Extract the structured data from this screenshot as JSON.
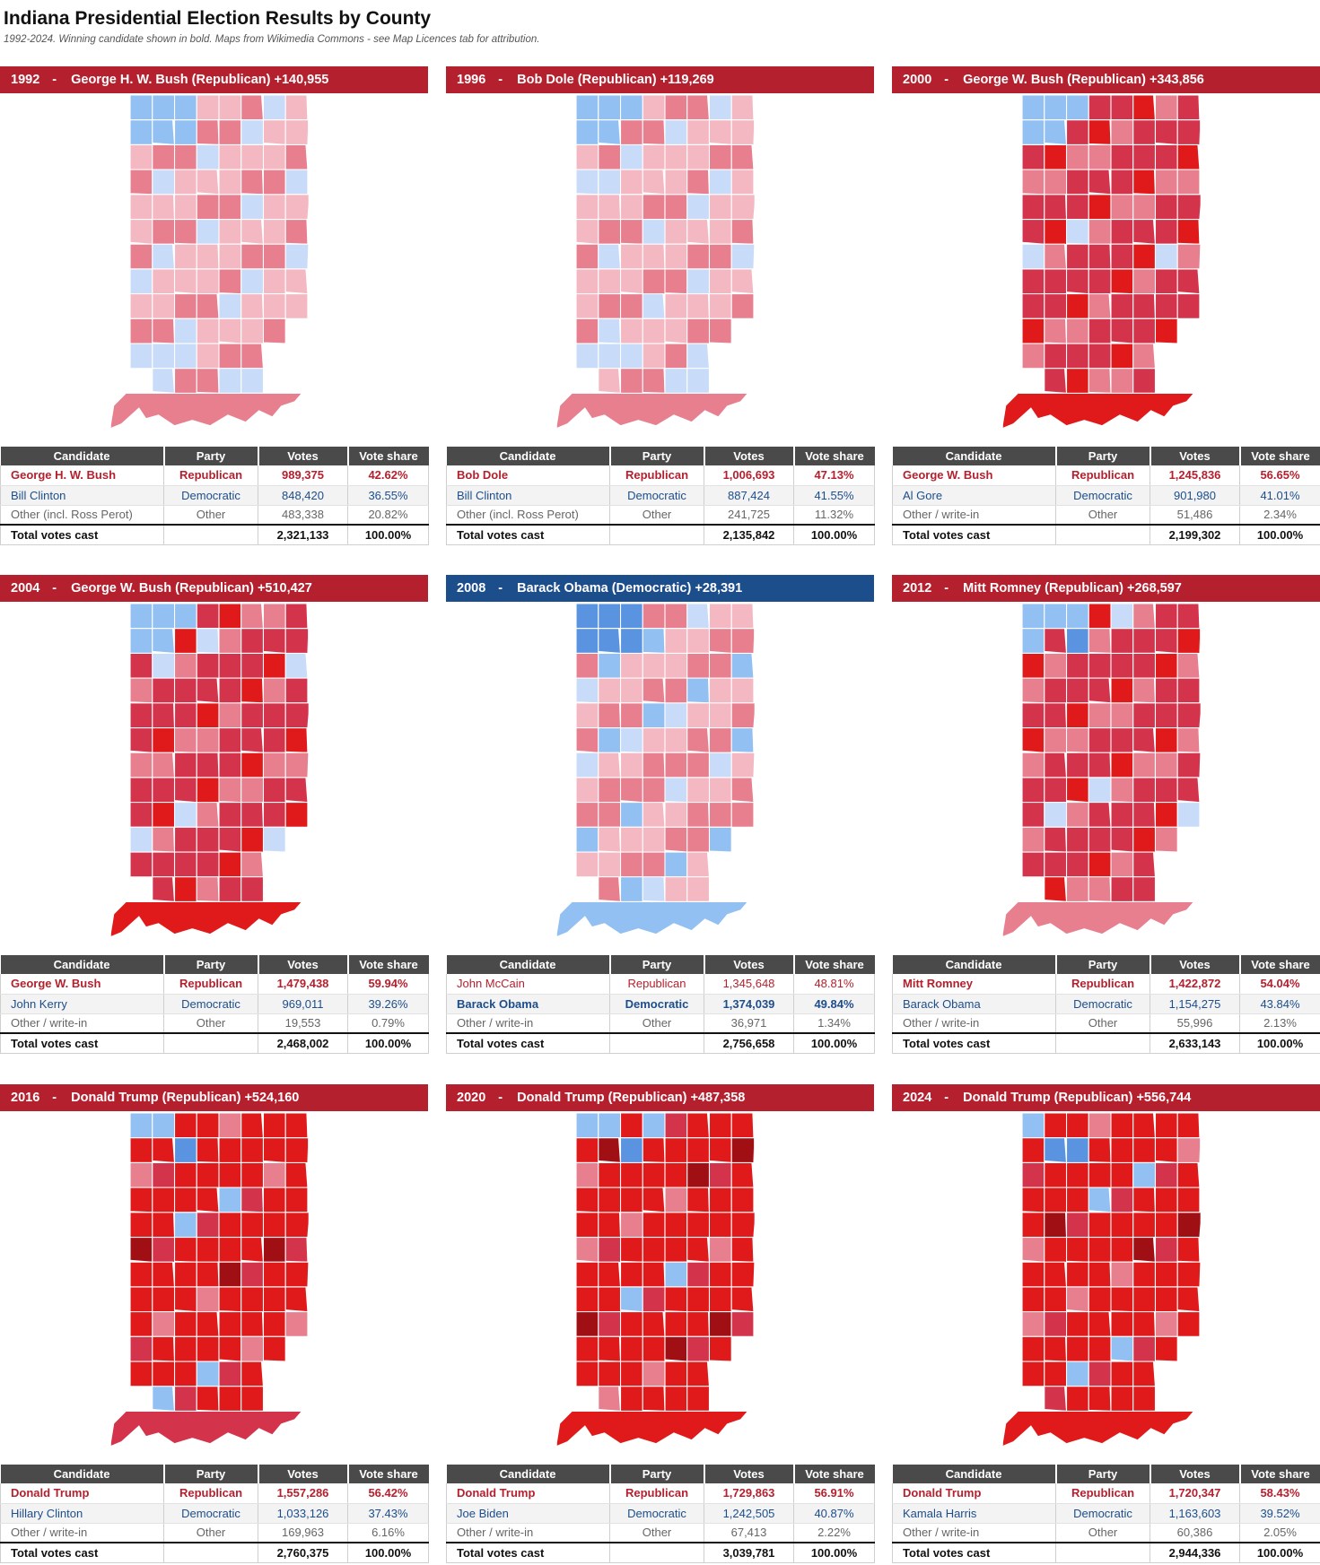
{
  "title": "Indiana Presidential Election Results by County",
  "subtitle": "1992-2024. Winning candidate shown in bold. Maps from Wikimedia Commons - see Map Licences tab for attribution.",
  "headers": {
    "candidate": "Candidate",
    "party": "Party",
    "votes": "Votes",
    "share": "Vote share"
  },
  "colors": {
    "rep_banner": "#b5202e",
    "dem_banner": "#1d4e8c",
    "header_bg": "#4a4a4a",
    "rep_text": "#b5202e",
    "dem_text": "#1d4e8c",
    "other_text": "#666666",
    "county_scale": [
      "#5a93e0",
      "#93c0f2",
      "#c8dcf9",
      "#f4b8c2",
      "#e77f8f",
      "#d3344c",
      "#e01a1a",
      "#a00f14"
    ]
  },
  "elections": [
    {
      "year": "1992",
      "winner_label": "George H. W. Bush (Republican) +140,955",
      "winner_party": "rep",
      "rows": [
        {
          "candidate": "George H. W. Bush",
          "party": "Republican",
          "votes": "989,375",
          "share": "42.62%",
          "kind": "rep",
          "win": true
        },
        {
          "candidate": "Bill Clinton",
          "party": "Democratic",
          "votes": "848,420",
          "share": "36.55%",
          "kind": "dem",
          "win": false
        },
        {
          "candidate": "Other (incl. Ross Perot)",
          "party": "Other",
          "votes": "483,338",
          "share": "20.82%",
          "kind": "oth",
          "win": false
        }
      ],
      "total": {
        "label": "Total votes cast",
        "votes": "2,321,133",
        "share": "100.00%"
      }
    },
    {
      "year": "1996",
      "winner_label": "Bob Dole (Republican) +119,269",
      "winner_party": "rep",
      "rows": [
        {
          "candidate": "Bob Dole",
          "party": "Republican",
          "votes": "1,006,693",
          "share": "47.13%",
          "kind": "rep",
          "win": true
        },
        {
          "candidate": "Bill Clinton",
          "party": "Democratic",
          "votes": "887,424",
          "share": "41.55%",
          "kind": "dem",
          "win": false
        },
        {
          "candidate": "Other (incl. Ross Perot)",
          "party": "Other",
          "votes": "241,725",
          "share": "11.32%",
          "kind": "oth",
          "win": false
        }
      ],
      "total": {
        "label": "Total votes cast",
        "votes": "2,135,842",
        "share": "100.00%"
      }
    },
    {
      "year": "2000",
      "winner_label": "George W. Bush (Republican) +343,856",
      "winner_party": "rep",
      "rows": [
        {
          "candidate": "George W. Bush",
          "party": "Republican",
          "votes": "1,245,836",
          "share": "56.65%",
          "kind": "rep",
          "win": true
        },
        {
          "candidate": "Al Gore",
          "party": "Democratic",
          "votes": "901,980",
          "share": "41.01%",
          "kind": "dem",
          "win": false
        },
        {
          "candidate": "Other / write-in",
          "party": "Other",
          "votes": "51,486",
          "share": "2.34%",
          "kind": "oth",
          "win": false
        }
      ],
      "total": {
        "label": "Total votes cast",
        "votes": "2,199,302",
        "share": "100.00%"
      }
    },
    {
      "year": "2004",
      "winner_label": "George W. Bush (Republican) +510,427",
      "winner_party": "rep",
      "rows": [
        {
          "candidate": "George W. Bush",
          "party": "Republican",
          "votes": "1,479,438",
          "share": "59.94%",
          "kind": "rep",
          "win": true
        },
        {
          "candidate": "John Kerry",
          "party": "Democratic",
          "votes": "969,011",
          "share": "39.26%",
          "kind": "dem",
          "win": false
        },
        {
          "candidate": "Other / write-in",
          "party": "Other",
          "votes": "19,553",
          "share": "0.79%",
          "kind": "oth",
          "win": false
        }
      ],
      "total": {
        "label": "Total votes cast",
        "votes": "2,468,002",
        "share": "100.00%"
      }
    },
    {
      "year": "2008",
      "winner_label": "Barack Obama (Democratic) +28,391",
      "winner_party": "dem",
      "rows": [
        {
          "candidate": "John McCain",
          "party": "Republican",
          "votes": "1,345,648",
          "share": "48.81%",
          "kind": "rep",
          "win": false
        },
        {
          "candidate": "Barack Obama",
          "party": "Democratic",
          "votes": "1,374,039",
          "share": "49.84%",
          "kind": "dem",
          "win": true
        },
        {
          "candidate": "Other / write-in",
          "party": "Other",
          "votes": "36,971",
          "share": "1.34%",
          "kind": "oth",
          "win": false
        }
      ],
      "total": {
        "label": "Total votes cast",
        "votes": "2,756,658",
        "share": "100.00%"
      }
    },
    {
      "year": "2012",
      "winner_label": "Mitt Romney (Republican) +268,597",
      "winner_party": "rep",
      "rows": [
        {
          "candidate": "Mitt Romney",
          "party": "Republican",
          "votes": "1,422,872",
          "share": "54.04%",
          "kind": "rep",
          "win": true
        },
        {
          "candidate": "Barack Obama",
          "party": "Democratic",
          "votes": "1,154,275",
          "share": "43.84%",
          "kind": "dem",
          "win": false
        },
        {
          "candidate": "Other / write-in",
          "party": "Other",
          "votes": "55,996",
          "share": "2.13%",
          "kind": "oth",
          "win": false
        }
      ],
      "total": {
        "label": "Total votes cast",
        "votes": "2,633,143",
        "share": "100.00%"
      }
    },
    {
      "year": "2016",
      "winner_label": "Donald Trump (Republican) +524,160",
      "winner_party": "rep",
      "rows": [
        {
          "candidate": "Donald Trump",
          "party": "Republican",
          "votes": "1,557,286",
          "share": "56.42%",
          "kind": "rep",
          "win": true
        },
        {
          "candidate": "Hillary Clinton",
          "party": "Democratic",
          "votes": "1,033,126",
          "share": "37.43%",
          "kind": "dem",
          "win": false
        },
        {
          "candidate": "Other / write-in",
          "party": "Other",
          "votes": "169,963",
          "share": "6.16%",
          "kind": "oth",
          "win": false
        }
      ],
      "total": {
        "label": "Total votes cast",
        "votes": "2,760,375",
        "share": "100.00%"
      }
    },
    {
      "year": "2020",
      "winner_label": "Donald Trump (Republican) +487,358",
      "winner_party": "rep",
      "rows": [
        {
          "candidate": "Donald Trump",
          "party": "Republican",
          "votes": "1,729,863",
          "share": "56.91%",
          "kind": "rep",
          "win": true
        },
        {
          "candidate": "Joe Biden",
          "party": "Democratic",
          "votes": "1,242,505",
          "share": "40.87%",
          "kind": "dem",
          "win": false
        },
        {
          "candidate": "Other / write-in",
          "party": "Other",
          "votes": "67,413",
          "share": "2.22%",
          "kind": "oth",
          "win": false
        }
      ],
      "total": {
        "label": "Total votes cast",
        "votes": "3,039,781",
        "share": "100.00%"
      }
    },
    {
      "year": "2024",
      "winner_label": "Donald Trump (Republican) +556,744",
      "winner_party": "rep",
      "rows": [
        {
          "candidate": "Donald Trump",
          "party": "Republican",
          "votes": "1,720,347",
          "share": "58.43%",
          "kind": "rep",
          "win": true
        },
        {
          "candidate": "Kamala Harris",
          "party": "Democratic",
          "votes": "1,163,603",
          "share": "39.52%",
          "kind": "dem",
          "win": false
        },
        {
          "candidate": "Other / write-in",
          "party": "Other",
          "votes": "60,386",
          "share": "2.05%",
          "kind": "oth",
          "win": false
        }
      ],
      "total": {
        "label": "Total votes cast",
        "votes": "2,944,336",
        "share": "100.00%"
      }
    }
  ]
}
